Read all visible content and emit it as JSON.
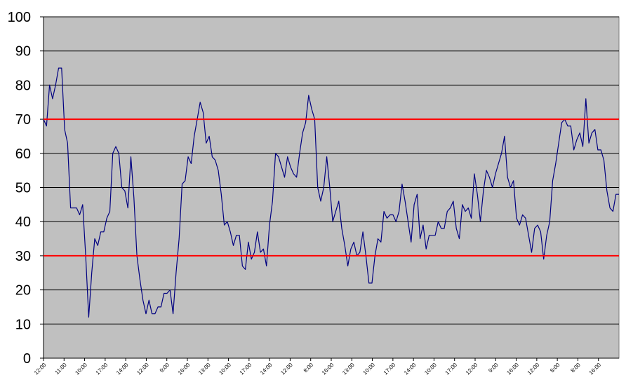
{
  "chart_data": {
    "type": "line",
    "title": "",
    "xlabel": "",
    "ylabel": "",
    "ylim": [
      0,
      100
    ],
    "yticks": [
      0,
      10,
      20,
      30,
      40,
      50,
      60,
      70,
      80,
      90,
      100
    ],
    "grid": true,
    "legend": "none",
    "x_tick_labels": [
      "12:00",
      "11:00",
      "10:00",
      "17:00",
      "14:00",
      "12:00",
      "9:00",
      "16:00",
      "13:00",
      "10:00",
      "17:00",
      "14:00",
      "12:00",
      "8:00",
      "16:00",
      "13:00",
      "10:00",
      "17:00",
      "14:00",
      "10:00",
      "17:00",
      "12:00",
      "9:00",
      "16:00",
      "12:00",
      "8:00",
      "8:00",
      "16:00"
    ],
    "series": [
      {
        "color": "#000080",
        "values": [
          70,
          68,
          80,
          76,
          80,
          85,
          85,
          67,
          63,
          44,
          44,
          44,
          42,
          45,
          30,
          12,
          25,
          35,
          33,
          37,
          37,
          41,
          43,
          60,
          62,
          60,
          50,
          49,
          44,
          59,
          47,
          30,
          23,
          17,
          13,
          17,
          13,
          13,
          15,
          15,
          19,
          19,
          20,
          13,
          25,
          35,
          51,
          52,
          59,
          57,
          65,
          70,
          75,
          72,
          63,
          65,
          59,
          58,
          55,
          48,
          39,
          40,
          37,
          33,
          36,
          36,
          27,
          26,
          34,
          29,
          31,
          37,
          31,
          32,
          27,
          39,
          46,
          60,
          59,
          56,
          53,
          59,
          56,
          54,
          53,
          60,
          66,
          69,
          77,
          73,
          70,
          50,
          46,
          50,
          59,
          50,
          40,
          43,
          46,
          38,
          33,
          27,
          32,
          34,
          30,
          31,
          37,
          30,
          22,
          22,
          30,
          35,
          34,
          43,
          41,
          42,
          42,
          40,
          43,
          51,
          46,
          40,
          34,
          45,
          48,
          35,
          39,
          32,
          36,
          36,
          36,
          40,
          38,
          38,
          43,
          44,
          46,
          38,
          35,
          45,
          43,
          44,
          41,
          54,
          48,
          40,
          49,
          55,
          53,
          50,
          54,
          57,
          60,
          65,
          53,
          50,
          52,
          41,
          39,
          42,
          41,
          36,
          31,
          38,
          39,
          37,
          29,
          36,
          40,
          52,
          57,
          63,
          69,
          70,
          68,
          68,
          61,
          64,
          66,
          62,
          76,
          63,
          66,
          67,
          61,
          61,
          58,
          49,
          44,
          43,
          48,
          48
        ]
      }
    ],
    "reference_lines": [
      {
        "value": 70,
        "color": "#ff0000"
      },
      {
        "value": 30,
        "color": "#ff0000"
      }
    ],
    "colors": {
      "plot_background": "#c0c0c0",
      "gridline": "#000000",
      "line": "#000080",
      "reference": "#ff0000"
    }
  }
}
